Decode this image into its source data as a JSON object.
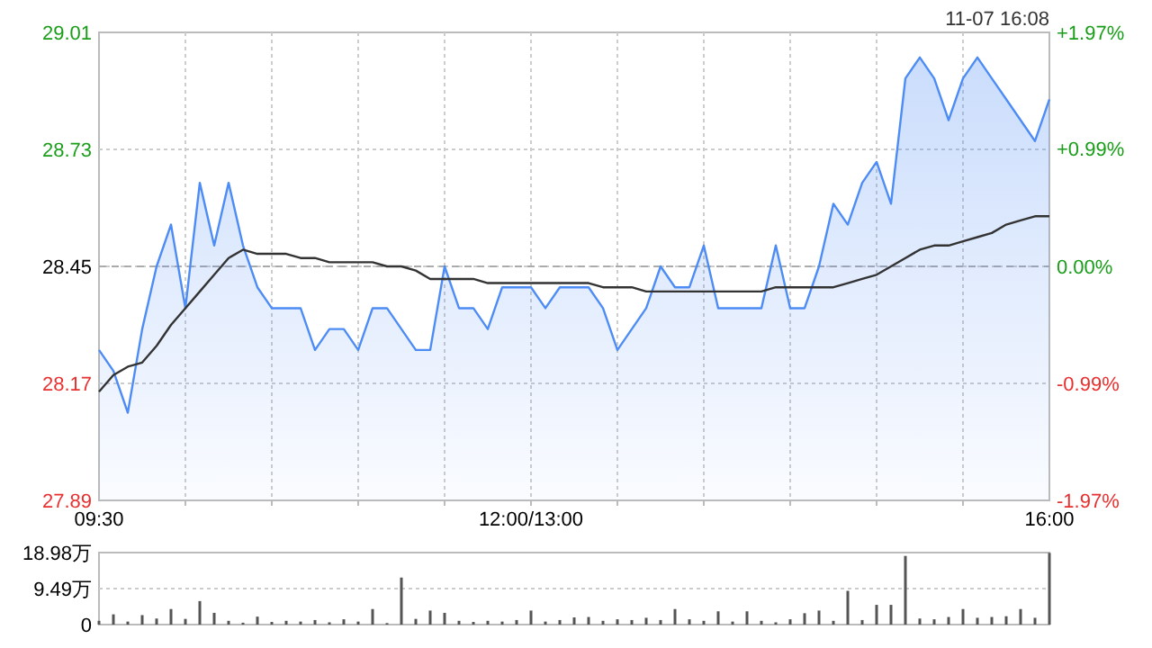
{
  "chart_data": [
    {
      "type": "area",
      "annotations": [
        "11-07 16:08"
      ],
      "categories": [
        "09:30",
        null,
        null,
        null,
        null,
        null,
        null,
        null,
        null,
        null,
        null,
        null,
        null,
        null,
        null,
        null,
        null,
        null,
        null,
        null,
        null,
        null,
        null,
        null,
        null,
        null,
        null,
        null,
        null,
        null,
        "12:00/13:00",
        null,
        null,
        null,
        null,
        null,
        null,
        null,
        null,
        null,
        null,
        null,
        null,
        null,
        null,
        null,
        null,
        null,
        null,
        null,
        null,
        null,
        null,
        null,
        null,
        null,
        null,
        null,
        null,
        null,
        null,
        null,
        null,
        null,
        null,
        null,
        "16:00"
      ],
      "ylim": [
        27.89,
        29.01
      ],
      "yticks": [
        27.89,
        28.17,
        28.45,
        28.73,
        29.01
      ],
      "y2lim": [
        -1.97,
        1.97
      ],
      "y2ticks": [
        {
          "value": -1.97,
          "label": "-1.97%"
        },
        {
          "value": -0.99,
          "label": "-0.99%"
        },
        {
          "value": 0,
          "label": "0.00%"
        },
        {
          "value": 0.99,
          "label": "+0.99%"
        },
        {
          "value": 1.97,
          "label": "+1.97%"
        }
      ],
      "grid": true,
      "ref_lines": [
        {
          "axis": "y",
          "value": 28.45,
          "color": "#aaaaaa",
          "line_style": "dashed"
        }
      ],
      "series": [
        {
          "color": "#4e8cf5",
          "values": [
            28.25,
            28.2,
            28.1,
            28.3,
            28.45,
            28.55,
            28.35,
            28.65,
            28.5,
            28.65,
            28.5,
            28.4,
            28.35,
            28.35,
            28.35,
            28.25,
            28.3,
            28.3,
            28.25,
            28.35,
            28.35,
            28.3,
            28.25,
            28.25,
            28.45,
            28.35,
            28.35,
            28.3,
            28.4,
            28.4,
            28.4,
            28.35,
            28.4,
            28.4,
            28.4,
            28.35,
            28.25,
            28.3,
            28.35,
            28.45,
            28.4,
            28.4,
            28.5,
            28.35,
            28.35,
            28.35,
            28.35,
            28.5,
            28.35,
            28.35,
            28.45,
            28.6,
            28.55,
            28.65,
            28.7,
            28.6,
            28.9,
            28.95,
            28.9,
            28.8,
            28.9,
            28.95,
            28.9,
            28.85,
            28.8,
            28.75,
            28.85
          ]
        },
        {
          "type": "line",
          "color": "#333333",
          "values": [
            28.15,
            28.19,
            28.21,
            28.22,
            28.26,
            28.31,
            28.35,
            28.39,
            28.43,
            28.47,
            28.49,
            28.48,
            28.48,
            28.48,
            28.47,
            28.47,
            28.46,
            28.46,
            28.46,
            28.46,
            28.45,
            28.45,
            28.44,
            28.42,
            28.42,
            28.42,
            28.42,
            28.41,
            28.41,
            28.41,
            28.41,
            28.41,
            28.41,
            28.41,
            28.41,
            28.4,
            28.4,
            28.4,
            28.39,
            28.39,
            28.39,
            28.39,
            28.39,
            28.39,
            28.39,
            28.39,
            28.39,
            28.4,
            28.4,
            28.4,
            28.4,
            28.4,
            28.41,
            28.42,
            28.43,
            28.45,
            28.47,
            28.49,
            28.5,
            28.5,
            28.51,
            28.52,
            28.53,
            28.55,
            28.56,
            28.57,
            28.57
          ]
        }
      ]
    },
    {
      "type": "bar",
      "tick_labels": "y",
      "grid": "y",
      "categories": [
        null,
        null,
        null,
        null,
        null,
        null,
        null,
        null,
        null,
        null,
        null,
        null,
        null,
        null,
        null,
        null,
        null,
        null,
        null,
        null,
        null,
        null,
        null,
        null,
        null,
        null,
        null,
        null,
        null,
        null,
        null,
        null,
        null,
        null,
        null,
        null,
        null,
        null,
        null,
        null,
        null,
        null,
        null,
        null,
        null,
        null,
        null,
        null,
        null,
        null,
        null,
        null,
        null,
        null,
        null,
        null,
        null,
        null,
        null,
        null,
        null,
        null,
        null,
        null,
        null,
        null,
        null
      ],
      "ylim": [
        0,
        18.98
      ],
      "yticks": [
        0,
        {
          "value": 9.49,
          "label": "9.49万"
        },
        {
          "value": 18.98,
          "label": "18.98万"
        }
      ],
      "series": [
        {
          "color": "#555555",
          "values": [
            1.0,
            2.7,
            0.8,
            2.5,
            1.6,
            4.1,
            1.5,
            6.2,
            3.1,
            1.0,
            0.5,
            2.1,
            0.7,
            1.0,
            0.8,
            1.2,
            0.6,
            1.4,
            0.8,
            4.1,
            0.4,
            12.4,
            1.5,
            3.7,
            3.1,
            1.0,
            0.7,
            1.0,
            0.8,
            1.2,
            3.7,
            0.8,
            1.2,
            1.9,
            2.0,
            1.0,
            1.4,
            1.2,
            1.8,
            1.2,
            4.1,
            1.4,
            1.0,
            3.5,
            0.8,
            3.5,
            1.0,
            0.6,
            1.4,
            3.0,
            3.7,
            1.0,
            8.9,
            1.2,
            5.2,
            5.2,
            18.1,
            1.6,
            1.4,
            2.0,
            4.1,
            1.8,
            2.0,
            2.2,
            4.1,
            1.8,
            18.9
          ]
        }
      ]
    }
  ]
}
